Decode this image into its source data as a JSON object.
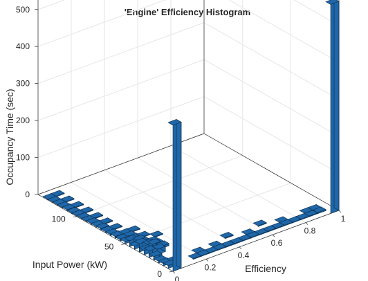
{
  "title": "'Engine' Efficiency Histogram",
  "chart_data": {
    "type": "bar3",
    "title": "'Engine' Efficiency Histogram",
    "xlabel": "Efficiency",
    "ylabel": "Input Power (kW)",
    "zlabel": "Occupancy Time (sec)",
    "xlim": [
      0,
      1
    ],
    "ylim": [
      0,
      140
    ],
    "zlim": [
      0,
      580
    ],
    "x_ticks": [
      0,
      0.2,
      0.4,
      0.6,
      0.8,
      1
    ],
    "x_tick_labels": [
      "0",
      "0.2",
      "0.4",
      "0.6",
      "0.8",
      "1"
    ],
    "y_ticks": [
      0,
      50,
      100
    ],
    "y_tick_labels": [
      "0",
      "50",
      "100"
    ],
    "z_ticks": [
      0,
      100,
      200,
      300,
      400,
      500
    ],
    "z_tick_labels": [
      "0",
      "100",
      "200",
      "300",
      "400",
      "500"
    ],
    "grid": true,
    "bar_color": "#1f67a8",
    "edge_color": "#0a2a48",
    "bin_width_x": 0.05,
    "bin_width_y": 5,
    "bins": [
      {
        "x": 0.0,
        "y": 0,
        "z": 395
      },
      {
        "x": 0.95,
        "y": 0,
        "z": 565
      },
      {
        "x": 0.0,
        "y": 5,
        "z": 8
      },
      {
        "x": 0.0,
        "y": 10,
        "z": 6
      },
      {
        "x": 0.0,
        "y": 15,
        "z": 5
      },
      {
        "x": 0.0,
        "y": 20,
        "z": 10
      },
      {
        "x": 0.0,
        "y": 25,
        "z": 18
      },
      {
        "x": 0.0,
        "y": 30,
        "z": 12
      },
      {
        "x": 0.0,
        "y": 35,
        "z": 22
      },
      {
        "x": 0.0,
        "y": 40,
        "z": 8
      },
      {
        "x": 0.0,
        "y": 45,
        "z": 16
      },
      {
        "x": 0.0,
        "y": 50,
        "z": 6
      },
      {
        "x": 0.0,
        "y": 55,
        "z": 4
      },
      {
        "x": 0.0,
        "y": 60,
        "z": 5
      },
      {
        "x": 0.0,
        "y": 65,
        "z": 3
      },
      {
        "x": 0.0,
        "y": 70,
        "z": 3
      },
      {
        "x": 0.0,
        "y": 75,
        "z": 4
      },
      {
        "x": 0.0,
        "y": 80,
        "z": 3
      },
      {
        "x": 0.0,
        "y": 85,
        "z": 3
      },
      {
        "x": 0.0,
        "y": 90,
        "z": 2
      },
      {
        "x": 0.0,
        "y": 95,
        "z": 2
      },
      {
        "x": 0.0,
        "y": 100,
        "z": 2
      },
      {
        "x": 0.0,
        "y": 105,
        "z": 2
      },
      {
        "x": 0.0,
        "y": 110,
        "z": 3
      },
      {
        "x": 0.0,
        "y": 115,
        "z": 2
      },
      {
        "x": 0.0,
        "y": 120,
        "z": 2
      },
      {
        "x": 0.0,
        "y": 125,
        "z": 2
      },
      {
        "x": 0.0,
        "y": 130,
        "z": 2
      },
      {
        "x": 0.05,
        "y": 10,
        "z": 3
      },
      {
        "x": 0.05,
        "y": 25,
        "z": 14
      },
      {
        "x": 0.05,
        "y": 30,
        "z": 20
      },
      {
        "x": 0.05,
        "y": 35,
        "z": 12
      },
      {
        "x": 0.05,
        "y": 40,
        "z": 9
      },
      {
        "x": 0.05,
        "y": 45,
        "z": 8
      },
      {
        "x": 0.05,
        "y": 50,
        "z": 5
      },
      {
        "x": 0.05,
        "y": 55,
        "z": 4
      },
      {
        "x": 0.05,
        "y": 60,
        "z": 3
      },
      {
        "x": 0.05,
        "y": 70,
        "z": 2
      },
      {
        "x": 0.05,
        "y": 80,
        "z": 2
      },
      {
        "x": 0.05,
        "y": 90,
        "z": 2
      },
      {
        "x": 0.05,
        "y": 100,
        "z": 2
      },
      {
        "x": 0.05,
        "y": 110,
        "z": 2
      },
      {
        "x": 0.05,
        "y": 120,
        "z": 2
      },
      {
        "x": 0.05,
        "y": 130,
        "z": 2
      },
      {
        "x": 0.1,
        "y": 30,
        "z": 6
      },
      {
        "x": 0.1,
        "y": 35,
        "z": 4
      },
      {
        "x": 0.1,
        "y": 40,
        "z": 3
      },
      {
        "x": 0.1,
        "y": 50,
        "z": 2
      },
      {
        "x": 0.1,
        "y": 60,
        "z": 2
      },
      {
        "x": 0.15,
        "y": 5,
        "z": 2
      },
      {
        "x": 0.15,
        "y": 45,
        "z": 2
      },
      {
        "x": 0.2,
        "y": 5,
        "z": 2
      },
      {
        "x": 0.2,
        "y": 10,
        "z": 2
      },
      {
        "x": 0.25,
        "y": 5,
        "z": 2
      },
      {
        "x": 0.3,
        "y": 5,
        "z": 2
      },
      {
        "x": 0.3,
        "y": 10,
        "z": 2
      },
      {
        "x": 0.35,
        "y": 5,
        "z": 2
      },
      {
        "x": 0.4,
        "y": 5,
        "z": 2
      },
      {
        "x": 0.4,
        "y": 15,
        "z": 2
      },
      {
        "x": 0.45,
        "y": 5,
        "z": 2
      },
      {
        "x": 0.5,
        "y": 5,
        "z": 2
      },
      {
        "x": 0.5,
        "y": 10,
        "z": 2
      },
      {
        "x": 0.55,
        "y": 5,
        "z": 2
      },
      {
        "x": 0.6,
        "y": 5,
        "z": 2
      },
      {
        "x": 0.6,
        "y": 15,
        "z": 2
      },
      {
        "x": 0.65,
        "y": 5,
        "z": 2
      },
      {
        "x": 0.7,
        "y": 5,
        "z": 2
      },
      {
        "x": 0.7,
        "y": 10,
        "z": 2
      },
      {
        "x": 0.75,
        "y": 5,
        "z": 2
      },
      {
        "x": 0.8,
        "y": 5,
        "z": 2
      },
      {
        "x": 0.85,
        "y": 5,
        "z": 2
      },
      {
        "x": 0.85,
        "y": 10,
        "z": 2
      },
      {
        "x": 0.9,
        "y": 5,
        "z": 3
      },
      {
        "x": 0.9,
        "y": 10,
        "z": 2
      }
    ]
  }
}
